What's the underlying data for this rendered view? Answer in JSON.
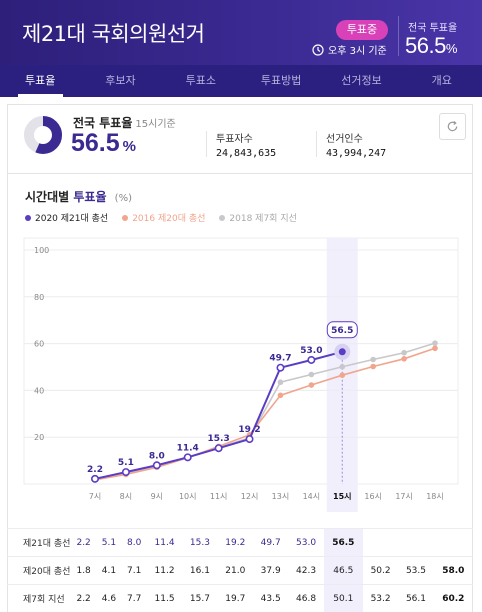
{
  "header": {
    "title": "제21대 국회의원선거",
    "badge": "투표중",
    "time_label": "오후 3시 기준",
    "national_label": "전국 투표율",
    "national_value": "56.5",
    "national_unit": "%"
  },
  "tabs": [
    {
      "label": "투표율",
      "active": true
    },
    {
      "label": "후보자",
      "active": false
    },
    {
      "label": "투표소",
      "active": false
    },
    {
      "label": "투표방법",
      "active": false
    },
    {
      "label": "선거정보",
      "active": false
    },
    {
      "label": "개요",
      "active": false
    }
  ],
  "summary": {
    "label": "전국 투표율",
    "sub": "15시기준",
    "value": "56.5",
    "unit": "%",
    "voters_label": "투표자수",
    "voters_value": "24,843,635",
    "electors_label": "선거인수",
    "electors_value": "43,994,247",
    "donut_fraction": 0.565
  },
  "chart_title": {
    "prefix": "시간대별",
    "highlight": "투표율",
    "unit": "(%)"
  },
  "colors": {
    "primary": "#3b2a92",
    "series2020": "#5b3cc4",
    "series2016": "#f0a58c",
    "series2018": "#c8c8cc",
    "badge": "#d941b8"
  },
  "chart_data": {
    "type": "line",
    "categories": [
      "7시",
      "8시",
      "9시",
      "10시",
      "11시",
      "12시",
      "13시",
      "14시",
      "15시",
      "16시",
      "17시",
      "18시"
    ],
    "highlight_category": "15시",
    "ylim": [
      0,
      100
    ],
    "yticks": [
      20,
      40,
      60,
      80,
      100
    ],
    "grid": true,
    "legend_position": "top-left",
    "series": [
      {
        "name": "2020 제21대 총선",
        "color": "#5b3cc4",
        "values": [
          2.2,
          5.1,
          8.0,
          11.4,
          15.3,
          19.2,
          49.7,
          53.0,
          56.5,
          null,
          null,
          null
        ],
        "data_labels": [
          "2.2",
          "5.1",
          "8.0",
          "11.4",
          "15.3",
          "19.2",
          "49.7",
          "53.0",
          "56.5"
        ]
      },
      {
        "name": "2016 제20대 총선",
        "color": "#f0a58c",
        "values": [
          1.8,
          4.1,
          7.1,
          11.2,
          16.1,
          21.0,
          37.9,
          42.3,
          46.5,
          50.2,
          53.5,
          58.0
        ]
      },
      {
        "name": "2018 제7회 지선",
        "color": "#c8c8cc",
        "values": [
          2.2,
          4.6,
          7.7,
          11.5,
          15.7,
          19.7,
          43.5,
          46.8,
          50.1,
          53.2,
          56.1,
          60.2
        ]
      }
    ]
  },
  "table": {
    "rows": [
      {
        "label": "제21대 총선",
        "cells": [
          "2.2",
          "5.1",
          "8.0",
          "11.4",
          "15.3",
          "19.2",
          "49.7",
          "53.0",
          "56.5",
          "",
          "",
          ""
        ]
      },
      {
        "label": "제20대 총선",
        "cells": [
          "1.8",
          "4.1",
          "7.1",
          "11.2",
          "16.1",
          "21.0",
          "37.9",
          "42.3",
          "46.5",
          "50.2",
          "53.5",
          "58.0"
        ]
      },
      {
        "label": "제7회 지선",
        "cells": [
          "2.2",
          "4.6",
          "7.7",
          "11.5",
          "15.7",
          "19.7",
          "43.5",
          "46.8",
          "50.1",
          "53.2",
          "56.1",
          "60.2"
        ]
      }
    ]
  }
}
